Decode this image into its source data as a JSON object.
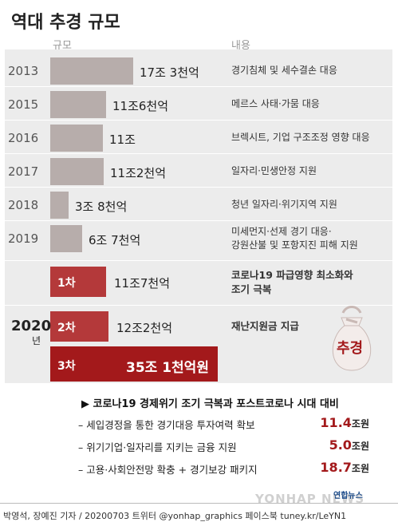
{
  "title": "역대 추경 규모",
  "columns": {
    "size": "규모",
    "content": "내용"
  },
  "chart_data": {
    "type": "bar",
    "unit": "조",
    "rows": [
      {
        "year": "2013",
        "value": 17.3,
        "label": "17조 3천억",
        "desc": [
          "경기침체 및 세수결손 대응"
        ]
      },
      {
        "year": "2015",
        "value": 11.6,
        "label": "11조6천억",
        "desc": [
          "메르스 사태·가뭄 대응"
        ]
      },
      {
        "year": "2016",
        "value": 11.0,
        "label": "11조",
        "desc": [
          "브렉시트, 기업 구조조정 영향 대응"
        ]
      },
      {
        "year": "2017",
        "value": 11.2,
        "label": "11조2천억",
        "desc": [
          "일자리·민생안정 지원"
        ]
      },
      {
        "year": "2018",
        "value": 3.8,
        "label": "3조 8천억",
        "desc": [
          "청년 일자리·위기지역 지원"
        ]
      },
      {
        "year": "2019",
        "value": 6.7,
        "label": "6조 7천억",
        "desc": [
          "미세먼지·선제 경기 대응·",
          "강원산불 및 포항지진 피해 지원"
        ]
      }
    ],
    "year2020": {
      "year": "2020",
      "suffix": "년",
      "phases": [
        {
          "phase": "1차",
          "value": 11.7,
          "label": "11조7천억",
          "desc": [
            "코로나19 파급영향 최소화와",
            "조기 극복"
          ]
        },
        {
          "phase": "2차",
          "value": 12.2,
          "label": "12조2천억",
          "desc": [
            "재난지원금 지급"
          ]
        },
        {
          "phase": "3차",
          "value": 35.1,
          "label": "35조 1천억원",
          "desc": []
        }
      ]
    }
  },
  "bottom": {
    "title": "▶ 코로나19 경제위기 조기 극복과 포스트코로나 시대 대비",
    "items": [
      {
        "text": "– 세입경정을 통한 경기대응 투자여력 확보",
        "num": "11.4",
        "unit": "조원"
      },
      {
        "text": "– 위기기업·일자리를 지키는 금융 지원",
        "num": "5.0",
        "unit": "조원"
      },
      {
        "text": "– 고용·사회안전망 확충 + 경기보강 패키지",
        "num": "18.7",
        "unit": "조원"
      }
    ]
  },
  "icon_label": "추경",
  "logo": "연합뉴스",
  "watermark": "YONHAP NEWS",
  "footer": "박영석, 장예진 기자 / 20200703 트위터 @yonhap_graphics  페이스북 tuney.kr/LeYN1",
  "colors": {
    "gray_bar": "#b7adab",
    "red_bar": "#b4393a",
    "dark_red_bar": "#a3191b",
    "accent": "#a3191b"
  }
}
